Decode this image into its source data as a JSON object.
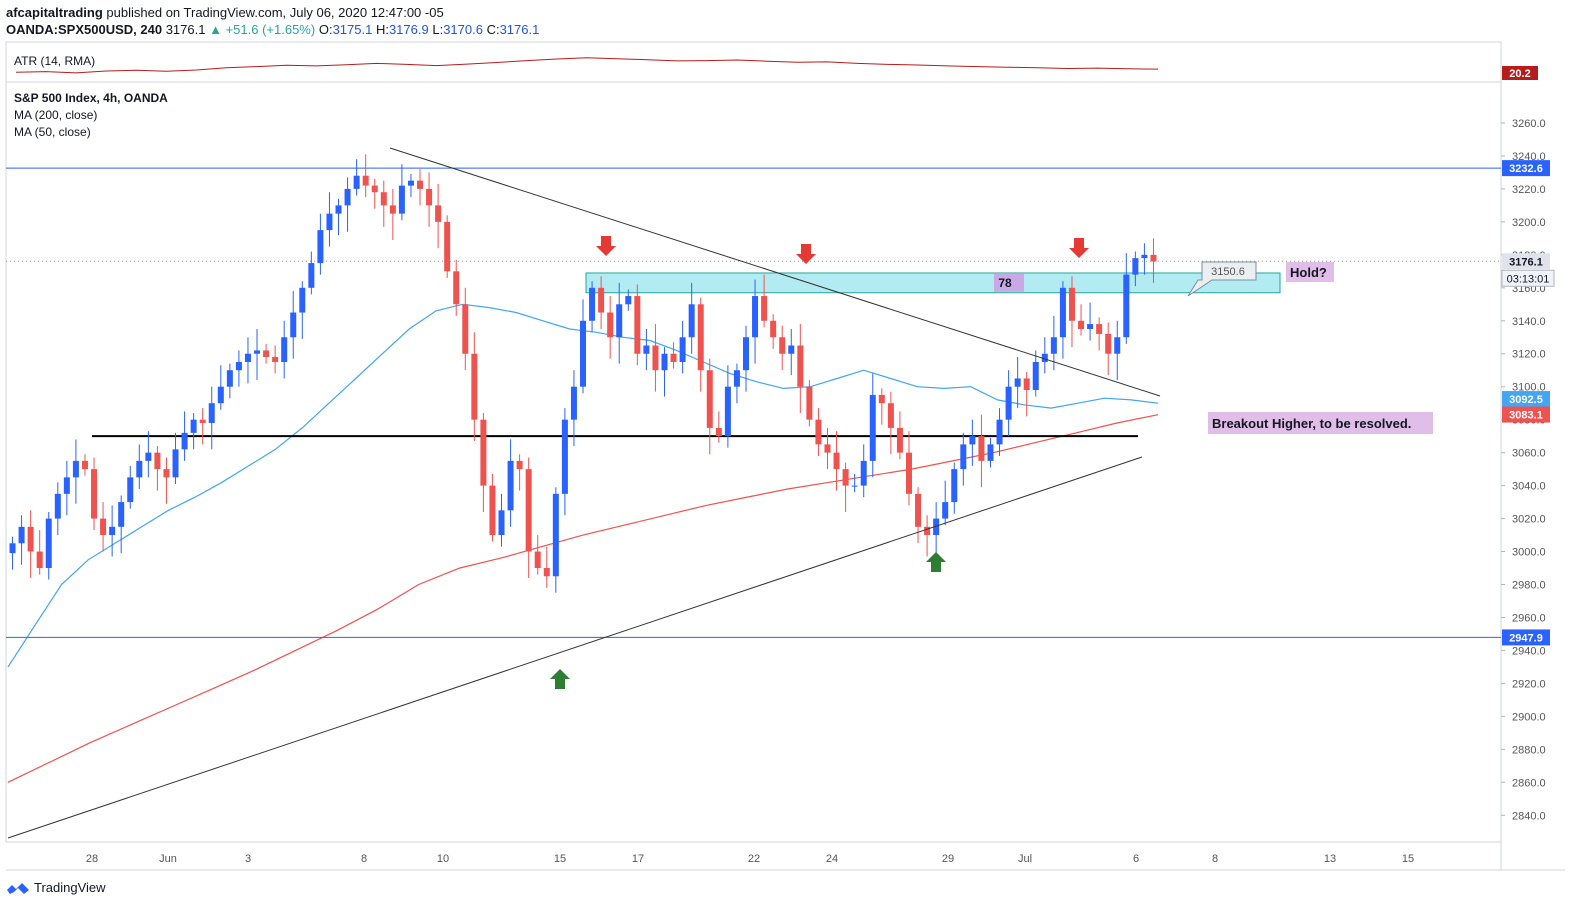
{
  "header": {
    "publisher": "afcapitaltrading",
    "published_text": "published on TradingView.com, July 06, 2020 12:47:00 -05",
    "symbol": "OANDA:SPX500USD, 240",
    "last": "3176.1",
    "change": "+51.6 (+1.65%)",
    "o_label": "O:",
    "o_value": "3175.1",
    "h_label": "H:",
    "h_value": "3176.9",
    "l_label": "L:",
    "l_value": "3170.6",
    "c_label": "C:",
    "c_value": "3176.1"
  },
  "atr": {
    "label": "ATR (14, RMA)",
    "value": "20.2",
    "values": [
      19.2,
      19.4,
      19.0,
      19.6,
      19.8,
      19.5,
      19.9,
      20.6,
      21.0,
      21.4,
      21.2,
      21.6,
      22.0,
      21.7,
      21.3,
      21.8,
      22.3,
      22.9,
      23.4,
      23.8,
      23.5,
      23.2,
      22.8,
      22.9,
      23.1,
      22.7,
      22.4,
      22.5,
      22.0,
      21.7,
      21.5,
      21.2,
      21.0,
      20.8,
      20.6,
      20.4,
      20.5,
      20.3,
      20.2
    ]
  },
  "legend": {
    "title": "S&P 500 Index, 4h, OANDA",
    "ma200": "MA (200, close)",
    "ma50": "MA (50, close)"
  },
  "colors": {
    "up": "#2962ff",
    "down": "#ef5350",
    "ma50": "#42a5f5",
    "ma200": "#ef5350",
    "hline": "#2962ff",
    "zone": "#b2ebf2"
  },
  "chart_data": {
    "type": "candlestick",
    "ylim": [
      2825,
      3280
    ],
    "y_ticks": [
      "2840.0",
      "2860.0",
      "2880.0",
      "2900.0",
      "2920.0",
      "2940.0",
      "2960.0",
      "2980.0",
      "3000.0",
      "3020.0",
      "3040.0",
      "3060.0",
      "3080.0",
      "3100.0",
      "3120.0",
      "3140.0",
      "3160.0",
      "3180.0",
      "3200.0",
      "3220.0",
      "3240.0",
      "3260.0"
    ],
    "x_ticks": [
      "28",
      "Jun",
      "3",
      "8",
      "10",
      "15",
      "17",
      "22",
      "24",
      "29",
      "Jul",
      "6",
      "8",
      "13",
      "15"
    ],
    "horizontal_levels": [
      {
        "value": 3232.6,
        "label": "3232.6"
      },
      {
        "value": 2947.9,
        "label": "2947.9"
      }
    ],
    "support_line": 3070,
    "price_labels": [
      {
        "value": 3176.1,
        "label": "3176.1"
      },
      {
        "value": 3092.5,
        "label": "3092.5"
      },
      {
        "value": 3083.1,
        "label": "3083.1"
      }
    ],
    "countdown": "03:13:01",
    "resistance_zone": {
      "from": 3157,
      "to": 3169,
      "label": "78"
    },
    "callout_value": "3150.6",
    "annotations": [
      "Hold?",
      "Breakout Higher, to be resolved."
    ],
    "closes": [
      3005,
      3015,
      3000,
      2990,
      3020,
      3035,
      3045,
      3055,
      3050,
      3020,
      3010,
      3015,
      3030,
      3045,
      3055,
      3060,
      3050,
      3045,
      3062,
      3072,
      3080,
      3078,
      3090,
      3100,
      3110,
      3115,
      3120,
      3122,
      3118,
      3115,
      3130,
      3145,
      3160,
      3175,
      3195,
      3205,
      3210,
      3220,
      3228,
      3222,
      3218,
      3210,
      3205,
      3222,
      3225,
      3220,
      3210,
      3200,
      3170,
      3150,
      3120,
      3080,
      3040,
      3010,
      3025,
      3055,
      3050,
      3000,
      2990,
      2985,
      3035,
      3080,
      3100,
      3140,
      3160,
      3145,
      3130,
      3150,
      3155,
      3120,
      3125,
      3110,
      3120,
      3115,
      3130,
      3150,
      3110,
      3075,
      3070,
      3100,
      3110,
      3130,
      3155,
      3140,
      3130,
      3120,
      3125,
      3100,
      3080,
      3065,
      3060,
      3050,
      3040,
      3040,
      3055,
      3095,
      3090,
      3075,
      3060,
      3035,
      3015,
      3010,
      3020,
      3030,
      3050,
      3065,
      3070,
      3055,
      3065,
      3080,
      3100,
      3105,
      3098,
      3115,
      3120,
      3130,
      3160,
      3140,
      3135,
      3138,
      3132,
      3120,
      3130,
      3168,
      3178,
      3180,
      3176
    ],
    "ma50": [
      2930,
      2955,
      2980,
      2995,
      3005,
      3015,
      3025,
      3033,
      3042,
      3052,
      3062,
      3075,
      3090,
      3105,
      3120,
      3135,
      3146,
      3150,
      3148,
      3145,
      3140,
      3135,
      3133,
      3130,
      3128,
      3122,
      3115,
      3108,
      3103,
      3099,
      3100,
      3105,
      3110,
      3105,
      3100,
      3099,
      3100,
      3092,
      3089,
      3087,
      3090,
      3093,
      3092,
      3090
    ],
    "ma200": [
      2860,
      2872,
      2884,
      2895,
      2906,
      2917,
      2928,
      2940,
      2952,
      2965,
      2980,
      2990,
      2996,
      3003,
      3010,
      3016,
      3022,
      3028,
      3033,
      3038,
      3042,
      3046,
      3050,
      3055,
      3060,
      3066,
      3072,
      3078,
      3083
    ]
  },
  "footer": {
    "brand": "TradingView"
  }
}
